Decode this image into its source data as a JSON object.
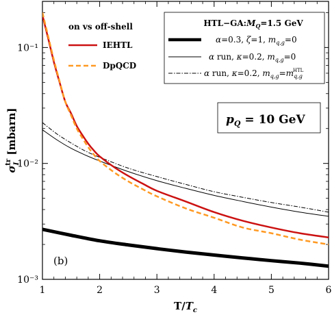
{
  "chart_data": {
    "type": "line",
    "x_label": "T/T_c",
    "y_label": "σ_I^tr [mbarn]",
    "xlim": [
      1,
      6
    ],
    "ylim": [
      0.001,
      0.25
    ],
    "y_scale": "log",
    "x_ticks": [
      1,
      2,
      3,
      4,
      5,
      6
    ],
    "x_tick_labels": [
      "1",
      "2",
      "3",
      "4",
      "5",
      "6"
    ],
    "y_ticks": [
      0.001,
      0.01,
      0.1
    ],
    "y_tick_labels": [
      "10⁻³",
      "10⁻²",
      "10⁻¹"
    ],
    "legend_left": {
      "title": "on vs off-shell",
      "entries": [
        {
          "series": "IEHTL",
          "label": "IEHTL"
        },
        {
          "series": "DpQCD",
          "label": "DpQCD"
        }
      ]
    },
    "legend_right": {
      "title": "HTL−GA:M_Q=1.5 GeV",
      "entries": [
        {
          "series": "alpha03",
          "label": "α=0.3, ζ=1, m_q,g=0"
        },
        {
          "series": "alpharun0",
          "label": "α run, κ=0.2, m_q,g=0"
        },
        {
          "series": "alpharunhtl",
          "label": "α run, κ=0.2, m_q,g=m_q,g^HTL"
        }
      ]
    },
    "annotations": {
      "momentum": "p_Q = 10 GeV",
      "panel": "(b)"
    },
    "series": [
      {
        "key": "IEHTL",
        "name": "IEHTL",
        "color": "#cc1111",
        "style": "solid",
        "x": [
          1.0,
          1.1,
          1.2,
          1.3,
          1.4,
          1.5,
          1.6,
          1.7,
          1.8,
          1.9,
          2.0,
          2.25,
          2.5,
          2.75,
          3.0,
          3.5,
          4.0,
          4.5,
          5.0,
          5.5,
          6.0
        ],
        "y": [
          0.19,
          0.12,
          0.075,
          0.05,
          0.034,
          0.027,
          0.021,
          0.0175,
          0.0148,
          0.0129,
          0.0115,
          0.0093,
          0.0078,
          0.0067,
          0.0058,
          0.0047,
          0.0038,
          0.0032,
          0.0028,
          0.0025,
          0.0023
        ]
      },
      {
        "key": "DpQCD",
        "name": "DpQCD",
        "color": "#ff9922",
        "style": "dashed",
        "x": [
          1.0,
          1.1,
          1.2,
          1.3,
          1.4,
          1.5,
          1.6,
          1.7,
          1.8,
          1.9,
          2.0,
          2.25,
          2.5,
          2.75,
          3.0,
          3.5,
          4.0,
          4.5,
          5.0,
          5.5,
          6.0
        ],
        "y": [
          0.2,
          0.125,
          0.078,
          0.051,
          0.034,
          0.026,
          0.02,
          0.0165,
          0.0138,
          0.0119,
          0.0105,
          0.0084,
          0.007,
          0.006,
          0.0052,
          0.0041,
          0.0034,
          0.0028,
          0.0025,
          0.0022,
          0.002
        ]
      },
      {
        "key": "alpha03",
        "name": "α=0.3, ζ=1, m_q,g=0",
        "color": "#000000",
        "style": "thick",
        "x": [
          1.0,
          1.5,
          2.0,
          2.5,
          3.0,
          3.5,
          4.0,
          4.5,
          5.0,
          5.5,
          6.0
        ],
        "y": [
          0.0027,
          0.0024,
          0.00215,
          0.00198,
          0.00184,
          0.00172,
          0.00162,
          0.00153,
          0.00145,
          0.00138,
          0.0013
        ]
      },
      {
        "key": "alpharun0",
        "name": "α run, κ=0.2, m_q,g=0",
        "color": "#000000",
        "style": "thin",
        "x": [
          1.0,
          1.25,
          1.5,
          1.75,
          2.0,
          2.5,
          3.0,
          3.5,
          4.0,
          4.5,
          5.0,
          5.5,
          6.0
        ],
        "y": [
          0.0195,
          0.016,
          0.0135,
          0.0118,
          0.0105,
          0.0085,
          0.0071,
          0.0061,
          0.0053,
          0.0047,
          0.0042,
          0.0038,
          0.0035
        ]
      },
      {
        "key": "alpharunhtl",
        "name": "α run, κ=0.2, m_q,g=m_q,g^HTL",
        "color": "#000000",
        "style": "dashdot",
        "x": [
          1.0,
          1.25,
          1.5,
          1.75,
          2.0,
          2.5,
          3.0,
          3.5,
          4.0,
          4.5,
          5.0,
          5.5,
          6.0
        ],
        "y": [
          0.0225,
          0.018,
          0.015,
          0.0128,
          0.0113,
          0.0091,
          0.0077,
          0.0066,
          0.0057,
          0.0051,
          0.0046,
          0.0042,
          0.0038
        ]
      }
    ]
  }
}
